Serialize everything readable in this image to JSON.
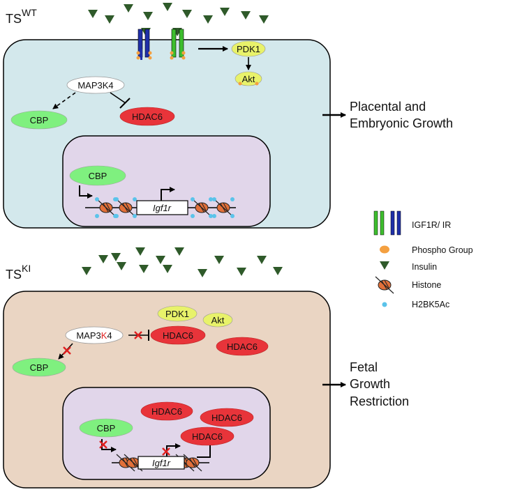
{
  "wt": {
    "label_main": "TS",
    "label_sup": "WT",
    "pdk1": "PDK1",
    "akt": "Akt",
    "map3k4": "MAP3K4",
    "cbp_cyto": "CBP",
    "hdac6": "HDAC6",
    "cbp_nuc": "CBP",
    "gene": "Igf1r",
    "outcome_line1": "Placental and",
    "outcome_line2": "Embryonic Growth"
  },
  "ki": {
    "label_main": "TS",
    "label_sup": "KI",
    "pdk1": "PDK1",
    "akt": "Akt",
    "map3k4_pre": "MAP3",
    "map3k4_mut": "K",
    "map3k4_post": "4",
    "hdac6_a": "HDAC6",
    "hdac6_b": "HDAC6",
    "cbp_cyto": "CBP",
    "hdac6_nuc_a": "HDAC6",
    "hdac6_nuc_b": "HDAC6",
    "hdac6_nuc_c": "HDAC6",
    "cbp_nuc": "CBP",
    "gene": "Igf1r",
    "outcome_line1": "Fetal",
    "outcome_line2": "Growth",
    "outcome_line3": "Restriction"
  },
  "legend": {
    "receptor": "IGF1R/ IR",
    "phospho": "Phospho Group",
    "insulin": "Insulin",
    "histone": "Histone",
    "acetyl": "H2BK5Ac"
  },
  "colors": {
    "wt_cell": "#d3e8ec",
    "ki_cell": "#ead5c3",
    "nucleus": "#e1d6ea",
    "cbp": "#7ff07f",
    "hdac6": "#e8343a",
    "pdk1_akt": "#e8f26a",
    "insulin": "#2f5a2a",
    "igf1r": "#3dbd2e",
    "ir": "#1f2fa8",
    "phospho": "#f4a040",
    "histone": "#e2703a",
    "acetyl": "#5bc3ea",
    "inhibit_x": "#e02020"
  }
}
